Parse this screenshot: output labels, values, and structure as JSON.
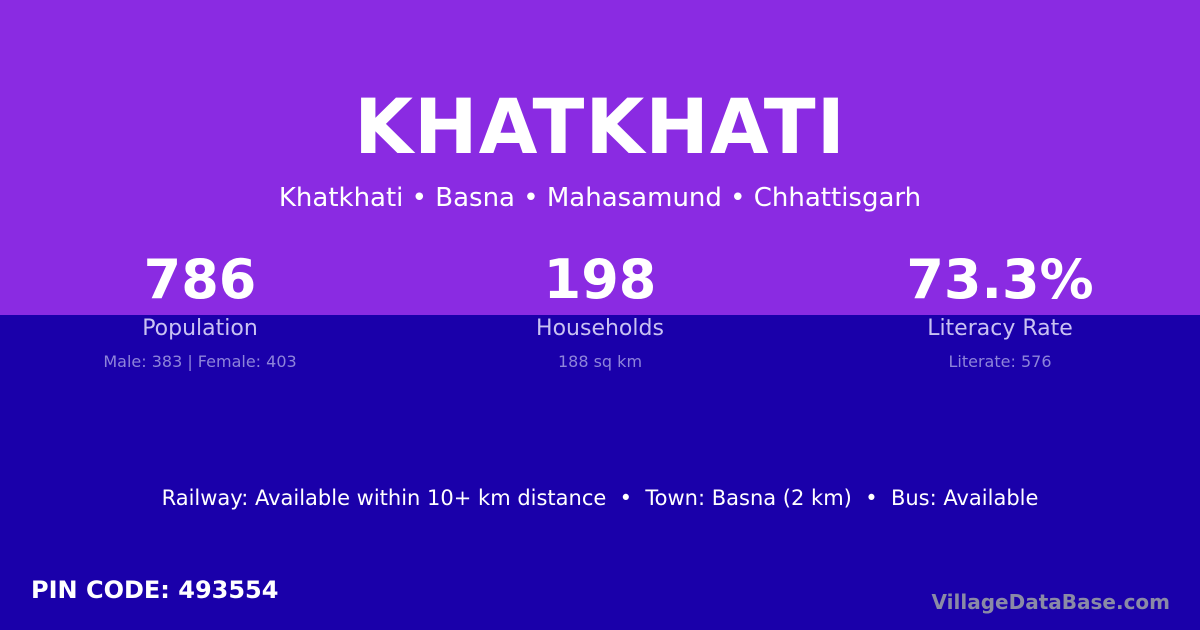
{
  "header": {
    "title": "KHATKHATI",
    "breadcrumb": "Khatkhati • Basna • Mahasamund • Chhattisgarh"
  },
  "stats": [
    {
      "value": "786",
      "label": "Population",
      "sub": "Male: 383 | Female: 403"
    },
    {
      "value": "198",
      "label": "Households",
      "sub": "188 sq km"
    },
    {
      "value": "73.3%",
      "label": "Literacy Rate",
      "sub": "Literate: 576"
    }
  ],
  "facts": "Railway: Available within 10+ km distance  •  Town: Basna (2 km)  •  Bus: Available",
  "pin": "PIN CODE: 493554",
  "brand": "VillageDataBase.com",
  "colors": {
    "top": "#8A2BE2",
    "bottom": "#1A00AA"
  }
}
